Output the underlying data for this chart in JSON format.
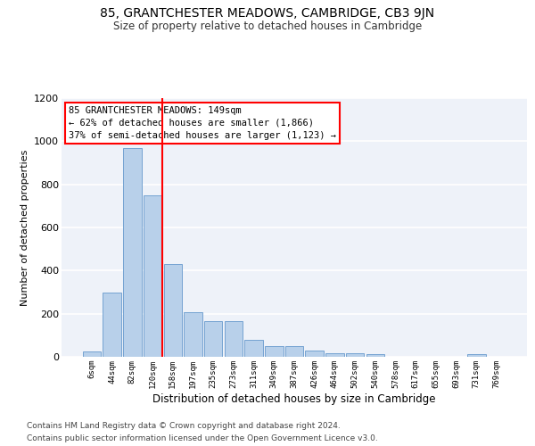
{
  "title": "85, GRANTCHESTER MEADOWS, CAMBRIDGE, CB3 9JN",
  "subtitle": "Size of property relative to detached houses in Cambridge",
  "xlabel": "Distribution of detached houses by size in Cambridge",
  "ylabel": "Number of detached properties",
  "bar_labels": [
    "6sqm",
    "44sqm",
    "82sqm",
    "120sqm",
    "158sqm",
    "197sqm",
    "235sqm",
    "273sqm",
    "311sqm",
    "349sqm",
    "387sqm",
    "426sqm",
    "464sqm",
    "502sqm",
    "540sqm",
    "578sqm",
    "617sqm",
    "655sqm",
    "693sqm",
    "731sqm",
    "769sqm"
  ],
  "bar_values": [
    25,
    300,
    970,
    748,
    430,
    208,
    165,
    165,
    78,
    50,
    50,
    30,
    18,
    15,
    12,
    0,
    0,
    0,
    0,
    12,
    0
  ],
  "bar_color": "#b8d0ea",
  "bar_edgecolor": "#6699cc",
  "vline_x_idx": 4,
  "vline_color": "red",
  "annotation_text": "85 GRANTCHESTER MEADOWS: 149sqm\n← 62% of detached houses are smaller (1,866)\n37% of semi-detached houses are larger (1,123) →",
  "annotation_box_edgecolor": "red",
  "annotation_box_facecolor": "white",
  "ylim": [
    0,
    1200
  ],
  "yticks": [
    0,
    200,
    400,
    600,
    800,
    1000,
    1200
  ],
  "footer_line1": "Contains HM Land Registry data © Crown copyright and database right 2024.",
  "footer_line2": "Contains public sector information licensed under the Open Government Licence v3.0.",
  "bg_color": "#eef2f9",
  "grid_color": "white"
}
